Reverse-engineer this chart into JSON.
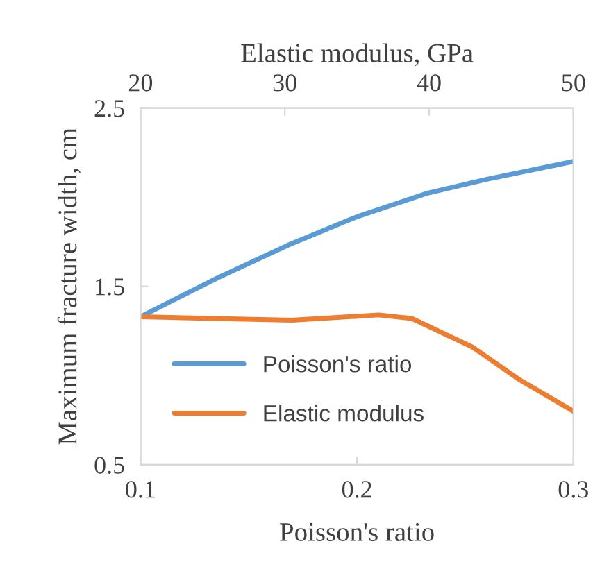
{
  "chart_data": {
    "type": "line",
    "xlabel": "Poisson's ratio",
    "x2label": "Elastic modulus, GPa",
    "ylabel": "Maximum fracture width, cm",
    "xlim": [
      0.1,
      0.3
    ],
    "xticks": [
      0.1,
      0.2,
      0.3
    ],
    "x2lim": [
      20,
      50
    ],
    "x2ticks": [
      20,
      30,
      40,
      50
    ],
    "ylim": [
      0.5,
      2.5
    ],
    "yticks": [
      0.5,
      1.5,
      2.5
    ],
    "grid": false,
    "legend": "bottom left",
    "marker": "none",
    "line_style": "solid",
    "series": [
      {
        "name": "Poisson's ratio",
        "color": "#5b9bd5",
        "x": [
          0.1,
          0.136,
          0.168,
          0.2,
          0.232,
          0.26,
          0.3
        ],
        "values": [
          1.33,
          1.55,
          1.73,
          1.89,
          2.02,
          2.1,
          2.2
        ]
      },
      {
        "name": "Elastic modulus",
        "color": "#ed7d31",
        "axis": "x2",
        "x": [
          20,
          25,
          30.5,
          36.5,
          38.8,
          43,
          46.2,
          50
        ],
        "values": [
          1.33,
          1.32,
          1.31,
          1.34,
          1.32,
          1.16,
          0.98,
          0.8
        ]
      }
    ]
  }
}
